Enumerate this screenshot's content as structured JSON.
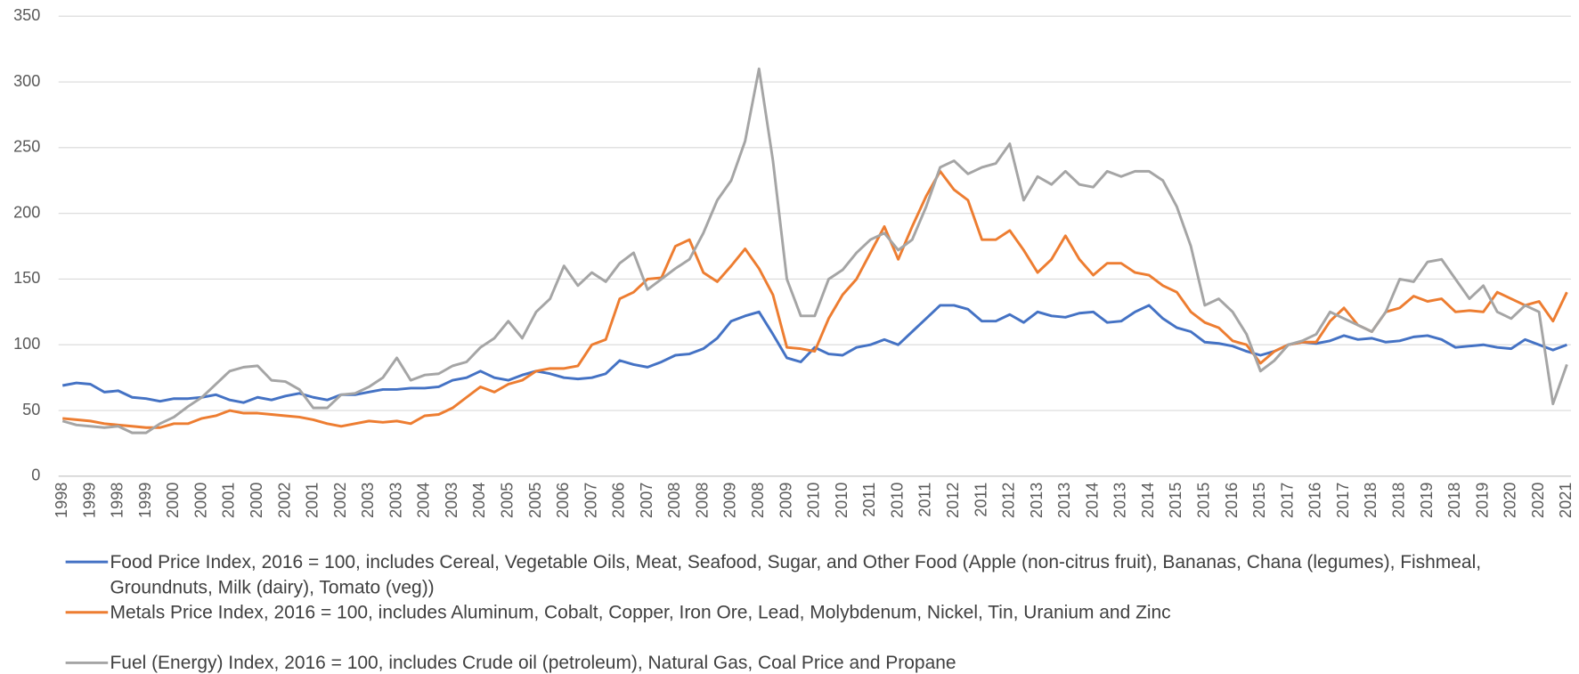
{
  "chart_data": {
    "type": "line",
    "categories": [
      "1998",
      null,
      "1999",
      null,
      "1998",
      null,
      "1999",
      null,
      "2000",
      null,
      "2000",
      null,
      "2001",
      null,
      "2000",
      null,
      "2002",
      null,
      "2001",
      null,
      "2002",
      null,
      "2003",
      null,
      "2003",
      null,
      "2004",
      null,
      "2003",
      null,
      "2004",
      null,
      "2005",
      null,
      "2005",
      null,
      "2006",
      null,
      "2007",
      null,
      "2006",
      null,
      "2007",
      null,
      "2008",
      null,
      "2008",
      null,
      "2009",
      null,
      "2008",
      null,
      "2009",
      null,
      "2010",
      null,
      "2010",
      null,
      "2011",
      null,
      "2010",
      null,
      "2011",
      null,
      "2012",
      null,
      "2011",
      null,
      "2012",
      null,
      "2013",
      null,
      "2013",
      null,
      "2014",
      null,
      "2013",
      null,
      "2014",
      null,
      "2015",
      null,
      "2015",
      null,
      "2016",
      null,
      "2015",
      null,
      "2017",
      null,
      "2016",
      null,
      "2017",
      null,
      "2018",
      null,
      "2018",
      null,
      "2019",
      null,
      "2018",
      null,
      "2019",
      null,
      "2020",
      null,
      "2020",
      null,
      "2021"
    ],
    "series": [
      {
        "name": "Food Price Index, 2016 = 100, includes Cereal, Vegetable Oils, Meat, Seafood, Sugar, and Other Food (Apple (non-citrus fruit), Bananas, Chana (legumes), Fishmeal, Groundnuts, Milk (dairy), Tomato (veg))",
        "color": "#4472c4",
        "values": [
          69,
          71,
          70,
          64,
          65,
          60,
          59,
          57,
          59,
          59,
          60,
          62,
          58,
          56,
          60,
          58,
          61,
          63,
          60,
          58,
          62,
          62,
          64,
          66,
          66,
          67,
          67,
          68,
          73,
          75,
          80,
          75,
          73,
          77,
          80,
          78,
          75,
          74,
          75,
          78,
          88,
          85,
          83,
          87,
          92,
          93,
          97,
          105,
          118,
          122,
          125,
          108,
          90,
          87,
          98,
          93,
          92,
          98,
          100,
          104,
          100,
          110,
          120,
          130,
          130,
          127,
          118,
          118,
          123,
          117,
          125,
          122,
          121,
          124,
          125,
          117,
          118,
          125,
          130,
          120,
          113,
          110,
          102,
          101,
          99,
          95,
          92,
          95,
          100,
          102,
          101,
          103,
          107,
          104,
          105,
          102,
          103,
          106,
          107,
          104,
          98,
          99,
          100,
          98,
          97,
          104,
          100,
          96,
          100
        ]
      },
      {
        "name": "Metals Price Index, 2016 = 100, includes Aluminum, Cobalt, Copper, Iron Ore, Lead, Molybdenum, Nickel, Tin, Uranium and Zinc",
        "color": "#ed7d31",
        "values": [
          44,
          43,
          42,
          40,
          39,
          38,
          37,
          37,
          40,
          40,
          44,
          46,
          50,
          48,
          48,
          47,
          46,
          45,
          43,
          40,
          38,
          40,
          42,
          41,
          42,
          40,
          46,
          47,
          52,
          60,
          68,
          64,
          70,
          73,
          80,
          82,
          82,
          84,
          100,
          104,
          135,
          140,
          150,
          151,
          175,
          180,
          155,
          148,
          160,
          173,
          158,
          138,
          98,
          97,
          95,
          120,
          138,
          150,
          170,
          190,
          165,
          190,
          213,
          232,
          218,
          210,
          180,
          180,
          187,
          172,
          155,
          165,
          183,
          165,
          153,
          162,
          162,
          155,
          153,
          145,
          140,
          125,
          117,
          113,
          103,
          100,
          86,
          95,
          100,
          102,
          102,
          118,
          128,
          115,
          110,
          125,
          128,
          137,
          133,
          135,
          125,
          126,
          125,
          140,
          135,
          130,
          133,
          118,
          140
        ]
      },
      {
        "name": "Fuel (Energy) Index, 2016 = 100, includes Crude oil (petroleum), Natural Gas, Coal Price and Propane",
        "color": "#a5a5a5",
        "values": [
          42,
          39,
          38,
          37,
          38,
          33,
          33,
          40,
          45,
          53,
          60,
          70,
          80,
          83,
          84,
          73,
          72,
          66,
          52,
          52,
          62,
          63,
          68,
          75,
          90,
          73,
          77,
          78,
          84,
          87,
          98,
          105,
          118,
          105,
          125,
          135,
          160,
          145,
          155,
          148,
          162,
          170,
          142,
          150,
          158,
          165,
          185,
          210,
          225,
          255,
          310,
          240,
          150,
          122,
          122,
          150,
          157,
          170,
          180,
          185,
          172,
          180,
          205,
          235,
          240,
          230,
          235,
          238,
          253,
          210,
          228,
          222,
          232,
          222,
          220,
          232,
          228,
          232,
          232,
          225,
          205,
          175,
          130,
          135,
          125,
          108,
          80,
          88,
          100,
          103,
          108,
          125,
          120,
          115,
          110,
          125,
          150,
          148,
          163,
          165,
          150,
          135,
          145,
          125,
          120,
          130,
          125,
          55,
          85
        ]
      }
    ],
    "ylim": [
      0,
      350
    ],
    "yticks": [
      0,
      50,
      100,
      150,
      200,
      250,
      300,
      350
    ],
    "grid": true
  }
}
